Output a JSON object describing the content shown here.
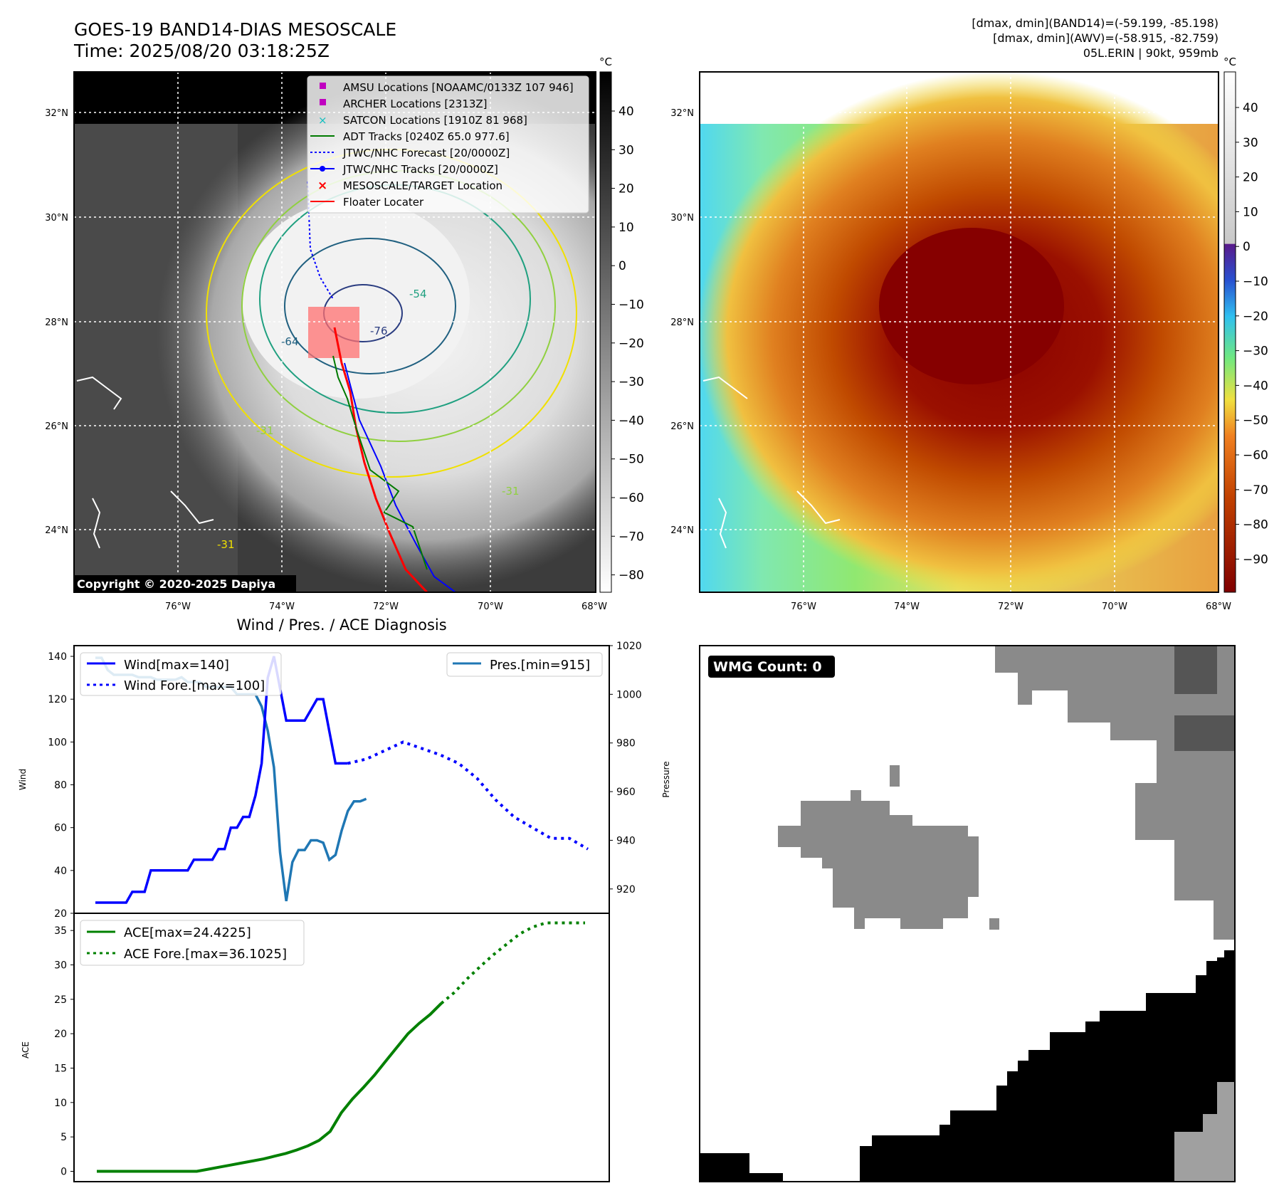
{
  "header": {
    "title_line1": "GOES-19 BAND14-DIAS MESOSCALE",
    "title_line2": "Time: 2025/08/20 03:18:25Z",
    "info_line1": "[dmax, dmin](BAND14)=(-59.199, -85.198)",
    "info_line2": "[dmax, dmin](AWV)=(-58.915, -82.759)",
    "info_line3": "05L.ERIN | 90kt, 959mb"
  },
  "map_axes": {
    "lon_ticks": [
      "76°W",
      "74°W",
      "72°W",
      "70°W",
      "68°W"
    ],
    "lat_ticks": [
      "32°N",
      "30°N",
      "28°N",
      "26°N",
      "24°N"
    ],
    "unit": "°C"
  },
  "gray_colorbar": {
    "ticks": [
      "40",
      "30",
      "20",
      "10",
      "0",
      "−10",
      "−20",
      "−30",
      "−40",
      "−50",
      "−60",
      "−70",
      "−80"
    ]
  },
  "color_colorbar": {
    "ticks": [
      "40",
      "30",
      "20",
      "10",
      "0",
      "−10",
      "−20",
      "−30",
      "−40",
      "−50",
      "−60",
      "−70",
      "−80",
      "−90"
    ]
  },
  "legend": {
    "items": [
      "AMSU Locations [NOAAMC/0133Z 107 946]",
      "ARCHER Locations [2313Z]",
      "SATCON Locations [1910Z 81 968]",
      "ADT Tracks [0240Z 65.0 977.6]",
      "JTWC/NHC Forecast [20/0000Z]",
      "JTWC/NHC Tracks [20/0000Z]",
      "MESOSCALE/TARGET Location",
      "Floater Locater"
    ],
    "colors": [
      "#c000c0",
      "#c000c0",
      "#10c0c0",
      "#007a00",
      "#0000ff",
      "#0000ff",
      "#ff0000",
      "#ff0000"
    ]
  },
  "contour_labels": [
    "-54",
    "-76",
    "-64",
    "-31",
    "-31",
    "-31"
  ],
  "copyright": "Copyright © 2020-2025 Dapiya",
  "diag_title": "Wind / Pres. / ACE Diagnosis",
  "wmg_badge": "WMG Count: 0",
  "chart_data": [
    {
      "type": "line",
      "name": "wind-pressure",
      "ylabel": "Wind",
      "y2label": "Pressure",
      "ylim": [
        20,
        145
      ],
      "y2lim": [
        910,
        1020
      ],
      "yticks": [
        "20",
        "40",
        "60",
        "80",
        "100",
        "120",
        "140"
      ],
      "y2ticks": [
        "920",
        "940",
        "960",
        "980",
        "1000",
        "1020"
      ],
      "series": [
        {
          "name": "Wind[max=140]",
          "color": "#0000ff",
          "style": "solid",
          "values": [
            25,
            25,
            25,
            25,
            25,
            25,
            30,
            30,
            30,
            40,
            40,
            40,
            40,
            40,
            40,
            40,
            45,
            45,
            45,
            45,
            50,
            50,
            60,
            60,
            65,
            65,
            75,
            90,
            130,
            140,
            125,
            110,
            110,
            110,
            110,
            115,
            120,
            120,
            105,
            90,
            90,
            90
          ]
        },
        {
          "name": "Wind Fore.[max=100]",
          "color": "#0000ff",
          "style": "dotted",
          "values": [
            90,
            92,
            96,
            100,
            97,
            94,
            90,
            83,
            73,
            65,
            60,
            55,
            55,
            50
          ]
        },
        {
          "name": "Pres.[min=915]",
          "color": "#1f77b4",
          "style": "solid",
          "values": [
            1015,
            1015,
            1010,
            1008,
            1008,
            1008,
            1008,
            1007,
            1007,
            1007,
            1006,
            1006,
            1006,
            1006,
            1007,
            1005,
            1005,
            1005,
            1003,
            1003,
            1003,
            1003,
            1003,
            1000,
            1000,
            1000,
            1000,
            995,
            985,
            970,
            935,
            915,
            931,
            936,
            936,
            940,
            940,
            939,
            932,
            934,
            944,
            952,
            956,
            956,
            957
          ]
        }
      ]
    },
    {
      "type": "line",
      "name": "ace",
      "ylabel": "ACE",
      "ylim": [
        -1.5,
        37.5
      ],
      "yticks": [
        "0",
        "5",
        "10",
        "15",
        "20",
        "25",
        "30",
        "35"
      ],
      "series": [
        {
          "name": "ACE[max=24.4225]",
          "color": "#008000",
          "style": "solid",
          "values": [
            0,
            0,
            0,
            0,
            0,
            0,
            0,
            0,
            0,
            0,
            0.3,
            0.6,
            0.9,
            1.2,
            1.5,
            1.8,
            2.2,
            2.6,
            3.1,
            3.7,
            4.5,
            5.8,
            8.5,
            10.5,
            12.2,
            14,
            16,
            18,
            20,
            21.5,
            22.8,
            24.4
          ]
        },
        {
          "name": "ACE Fore.[max=36.1025]",
          "color": "#008000",
          "style": "dotted",
          "values": [
            24.4,
            26,
            28,
            29.8,
            31.5,
            33,
            34.5,
            35.5,
            36.1,
            36.1,
            36.1,
            36.1
          ]
        }
      ]
    }
  ]
}
